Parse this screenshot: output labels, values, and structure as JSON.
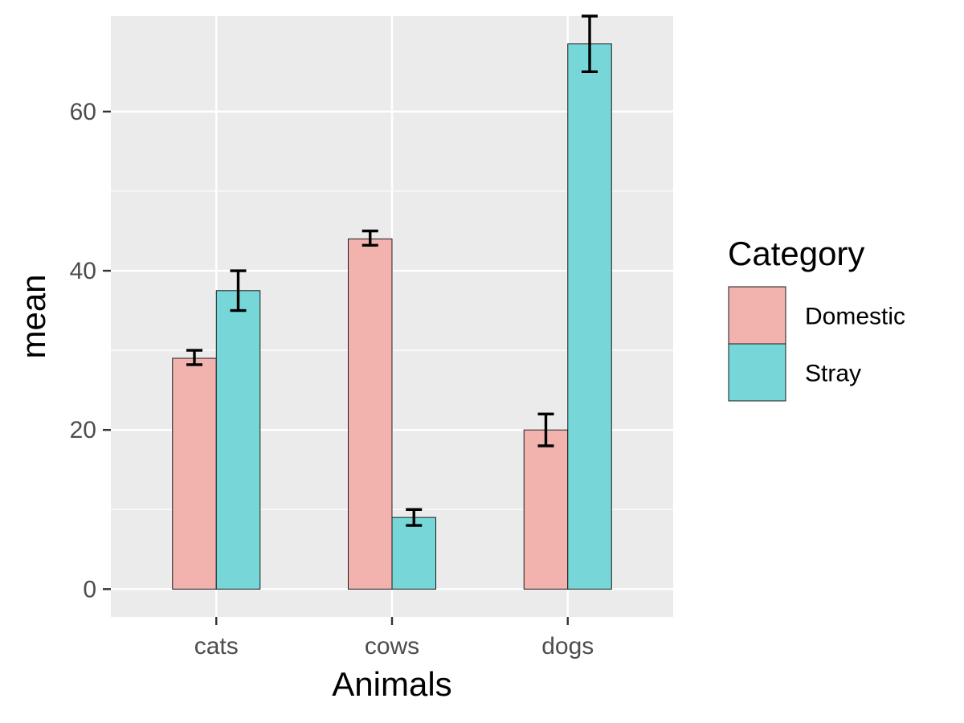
{
  "chart_data": {
    "type": "bar",
    "title": "",
    "xlabel": "Animals",
    "ylabel": "mean",
    "categories": [
      "cats",
      "cows",
      "dogs"
    ],
    "ylim": [
      -3.5,
      72
    ],
    "yticks": [
      0,
      20,
      40,
      60
    ],
    "ytick_labels": [
      "0",
      "20",
      "40",
      "60"
    ],
    "grid": true,
    "series": [
      {
        "name": "Domestic",
        "color": "#F2B3AF",
        "values": [
          29,
          44,
          20
        ],
        "error_low": [
          28.2,
          43.2,
          18
        ],
        "error_high": [
          30,
          45,
          22
        ]
      },
      {
        "name": "Stray",
        "color": "#77D7D8",
        "values": [
          37.5,
          9,
          68.5
        ],
        "error_low": [
          35,
          8,
          65
        ],
        "error_high": [
          40,
          10,
          72
        ]
      }
    ],
    "legend": {
      "title": "Category",
      "position": "right"
    }
  },
  "colors": {
    "panel_background": "#EBEBEB",
    "grid_major": "#FFFFFF",
    "bar_outline": "#1a1a1a",
    "error_bar": "#000000"
  }
}
